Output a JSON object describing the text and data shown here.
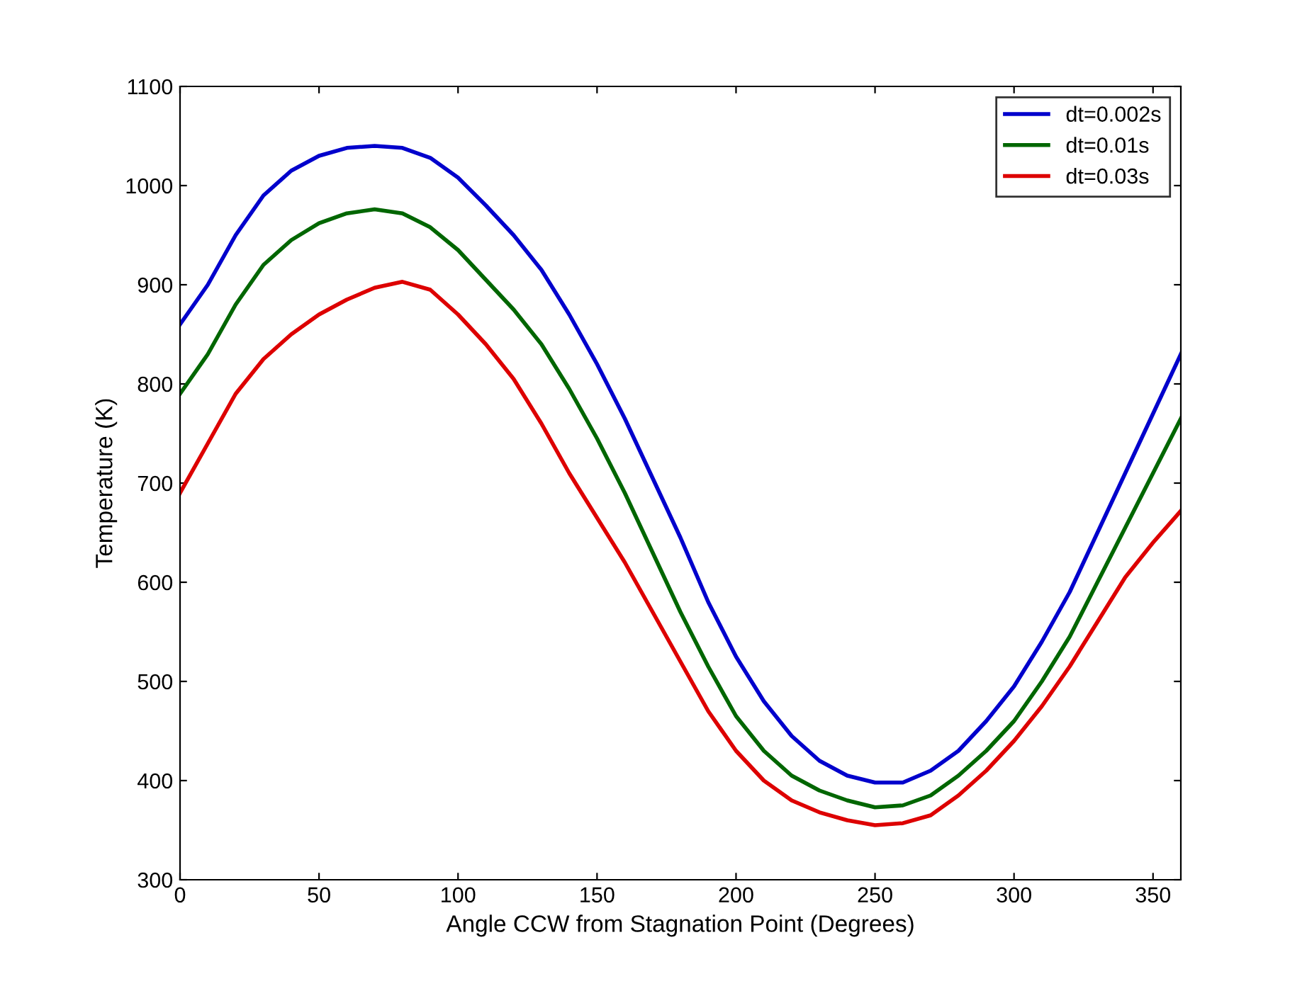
{
  "chart_data": {
    "type": "line",
    "xlabel": "Angle CCW from Stagnation Point (Degrees)",
    "ylabel": "Temperature (K)",
    "x": [
      0,
      10,
      20,
      30,
      40,
      50,
      60,
      70,
      80,
      90,
      100,
      110,
      120,
      130,
      140,
      150,
      160,
      170,
      180,
      190,
      200,
      210,
      220,
      230,
      240,
      250,
      260,
      270,
      280,
      290,
      300,
      310,
      320,
      330,
      340,
      350,
      360
    ],
    "series": [
      {
        "name": "dt=0.002s",
        "color": "#0000cc",
        "values": [
          860,
          900,
          950,
          990,
          1015,
          1030,
          1038,
          1040,
          1038,
          1028,
          1008,
          980,
          950,
          915,
          870,
          820,
          765,
          705,
          645,
          580,
          525,
          480,
          445,
          420,
          405,
          398,
          398,
          410,
          430,
          460,
          495,
          540,
          590,
          650,
          710,
          770,
          830
        ]
      },
      {
        "name": "dt=0.01s",
        "color": "#006600",
        "values": [
          790,
          830,
          880,
          920,
          945,
          962,
          972,
          976,
          972,
          958,
          935,
          905,
          875,
          840,
          795,
          745,
          690,
          630,
          570,
          515,
          465,
          430,
          405,
          390,
          380,
          373,
          375,
          385,
          405,
          430,
          460,
          500,
          545,
          600,
          655,
          710,
          765
        ]
      },
      {
        "name": "dt=0.03s",
        "color": "#dd0000",
        "values": [
          690,
          740,
          790,
          825,
          850,
          870,
          885,
          897,
          903,
          895,
          870,
          840,
          805,
          760,
          710,
          665,
          620,
          570,
          520,
          470,
          430,
          400,
          380,
          368,
          360,
          355,
          357,
          365,
          385,
          410,
          440,
          475,
          515,
          560,
          605,
          640,
          672
        ]
      }
    ],
    "xlim": [
      0,
      360
    ],
    "ylim": [
      300,
      1100
    ],
    "xticks": [
      0,
      50,
      100,
      150,
      200,
      250,
      300,
      350
    ],
    "yticks": [
      300,
      400,
      500,
      600,
      700,
      800,
      900,
      1000,
      1100
    ],
    "grid": false,
    "legend": "top right",
    "line_style": "solid"
  }
}
